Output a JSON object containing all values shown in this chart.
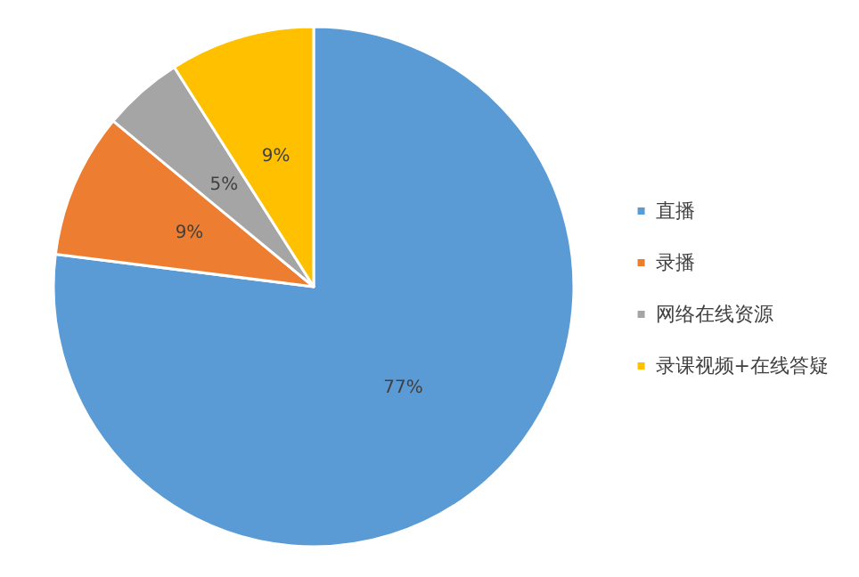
{
  "chart_data": {
    "type": "pie",
    "categories": [
      "直播",
      "录播",
      "网络在线资源",
      "录课视频+在线答疑"
    ],
    "values": [
      77,
      9,
      5,
      9
    ],
    "colors": [
      "#5b9bd5",
      "#ed7d31",
      "#a5a5a5",
      "#ffc000"
    ],
    "value_labels": [
      "77%",
      "9%",
      "5%",
      "9%"
    ],
    "legend": "right"
  }
}
